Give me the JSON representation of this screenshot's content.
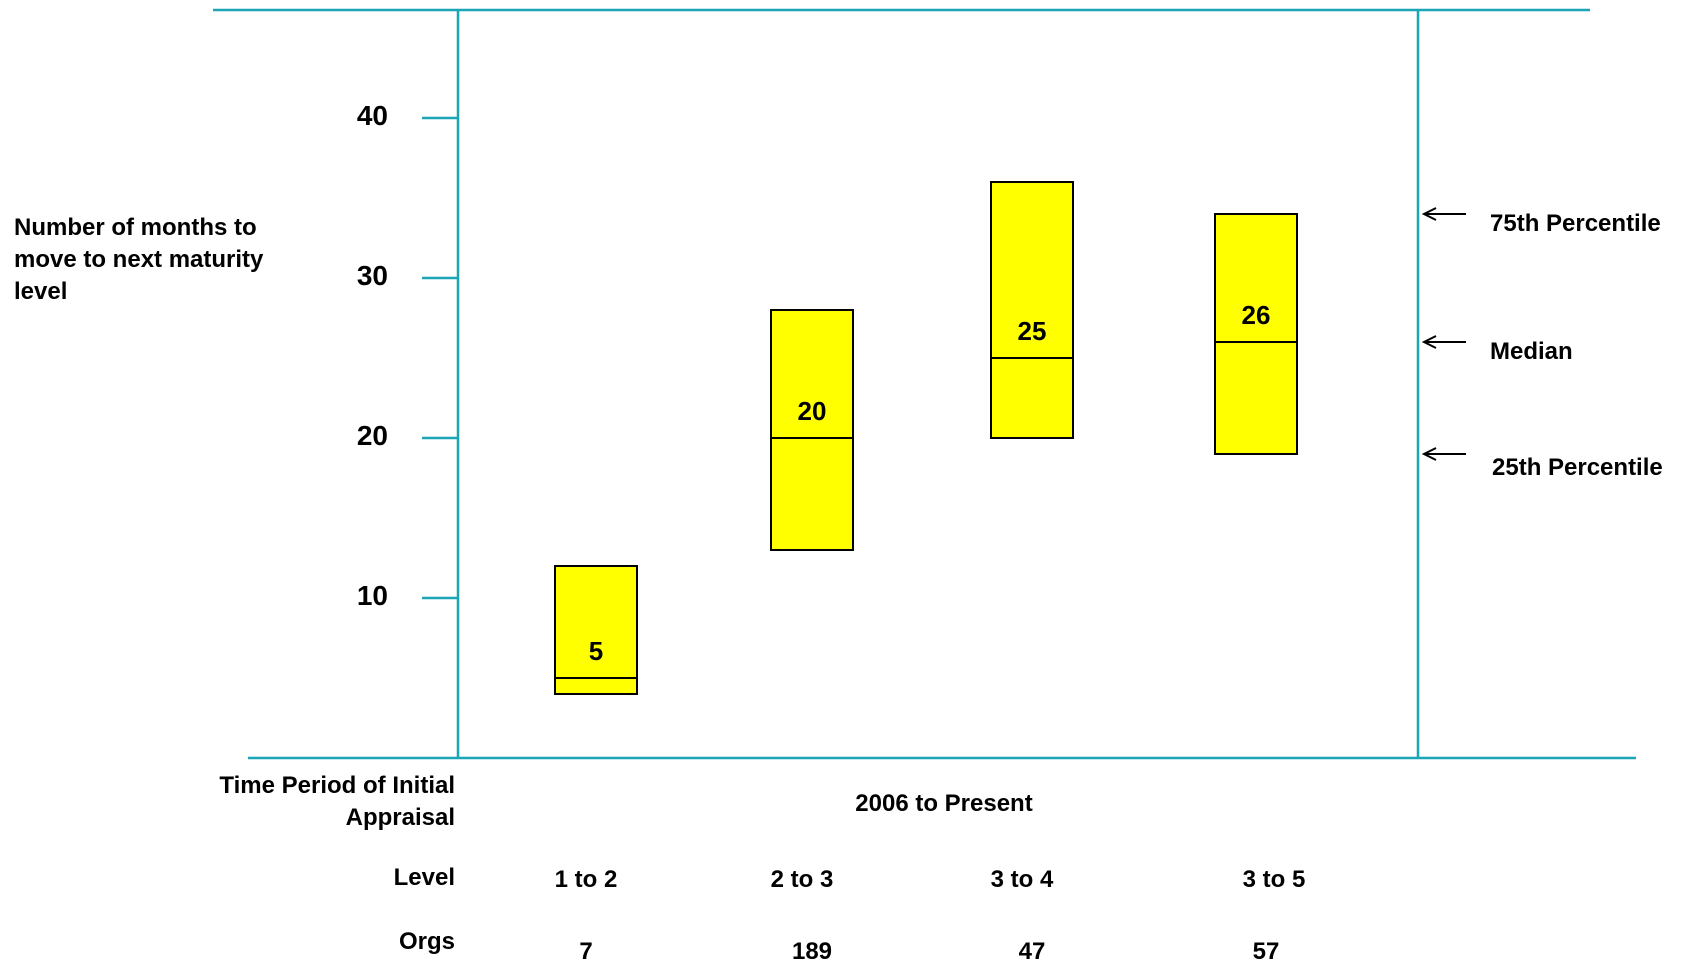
{
  "chart_data": {
    "type": "box",
    "ylabel": "Number of months to move to next maturity level",
    "ylim": [
      0,
      47
    ],
    "yticks": [
      10,
      20,
      30,
      40
    ],
    "grid": false,
    "categories": [
      "1 to 2",
      "2 to 3",
      "3 to 4",
      "3 to 5"
    ],
    "boxes": [
      {
        "category": "1 to 2",
        "p25": 4,
        "median": 5,
        "p75": 12,
        "orgs": "7"
      },
      {
        "category": "2 to 3",
        "p25": 13,
        "median": 20,
        "p75": 28,
        "orgs": "189"
      },
      {
        "category": "3 to 4",
        "p25": 20,
        "median": 25,
        "p75": 36,
        "orgs": "47"
      },
      {
        "category": "3 to 5",
        "p25": 19,
        "median": 26,
        "p75": 34,
        "orgs": "57"
      }
    ],
    "legend": {
      "placement": "right",
      "items": [
        {
          "label": "75th Percentile",
          "key": "p75"
        },
        {
          "label": "Median",
          "key": "median"
        },
        {
          "label": "25th Percentile",
          "key": "p25"
        }
      ]
    },
    "table": {
      "time_period_label": "Time Period of Initial Appraisal",
      "time_period_value": "2006 to Present",
      "level_label": "Level",
      "orgs_label": "Orgs"
    },
    "colors": {
      "box_fill": "#FFFF00",
      "axis": "#1AA6B7",
      "box_stroke": "#000000"
    }
  }
}
